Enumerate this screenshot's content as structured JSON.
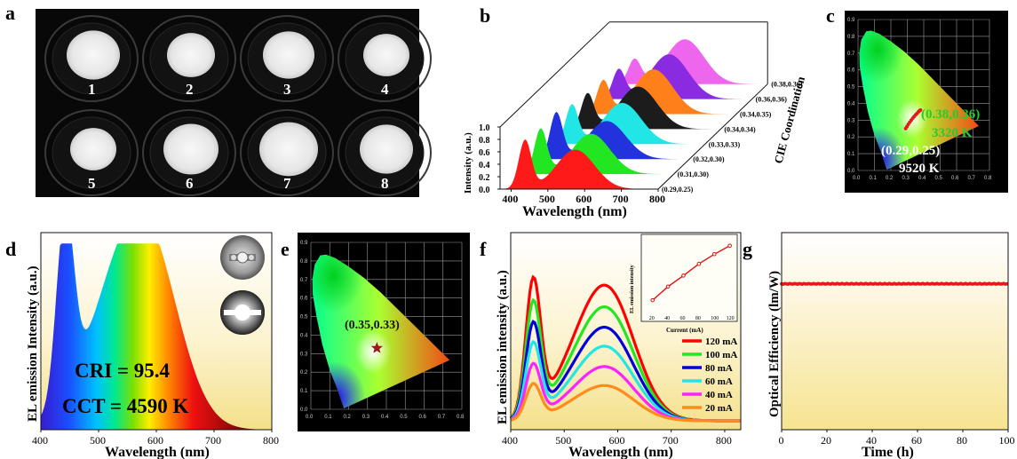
{
  "panel_labels": [
    "a",
    "b",
    "c",
    "d",
    "e",
    "f",
    "g"
  ],
  "panel_a": {
    "sample_numbers": [
      "1",
      "2",
      "3",
      "4",
      "5",
      "6",
      "7",
      "8"
    ]
  },
  "chart_data": [
    {
      "id": "b",
      "type": "line",
      "xlabel": "Wavelength (nm)",
      "ylabel": "Intensity (a.u.)",
      "zlabel": "CIE Coordination",
      "x_ticks": [
        "400",
        "500",
        "600",
        "700",
        "800"
      ],
      "y_ticks": [
        "0.0",
        "0.2",
        "0.4",
        "0.6",
        "0.8",
        "1.0"
      ],
      "xlim": [
        370,
        800
      ],
      "ylim": [
        0,
        1.0
      ],
      "series": [
        {
          "name": "(0.29,0.25)",
          "color": "#ff1a1a",
          "blue_peak": 1.0,
          "yellow_peak": 0.88
        },
        {
          "name": "(0.31,0.30)",
          "color": "#22e622",
          "blue_peak": 0.92,
          "yellow_peak": 0.9
        },
        {
          "name": "(0.32,0.30)",
          "color": "#2233dd",
          "blue_peak": 0.95,
          "yellow_peak": 0.85
        },
        {
          "name": "(0.33,0.33)",
          "color": "#22e6e6",
          "blue_peak": 0.8,
          "yellow_peak": 0.92
        },
        {
          "name": "(0.34,0.34)",
          "color": "#1c1c1c",
          "blue_peak": 0.72,
          "yellow_peak": 0.95
        },
        {
          "name": "(0.34,0.35)",
          "color": "#ff7f1a",
          "blue_peak": 0.68,
          "yellow_peak": 1.0
        },
        {
          "name": "(0.36,0.36)",
          "color": "#8a2be2",
          "blue_peak": 0.6,
          "yellow_peak": 1.0
        },
        {
          "name": "(0.38,0.36)",
          "color": "#ee66ee",
          "blue_peak": 0.5,
          "yellow_peak": 1.0
        }
      ]
    },
    {
      "id": "c",
      "type": "scatter",
      "x_ticks": [
        "0.0",
        "0.1",
        "0.2",
        "0.3",
        "0.4",
        "0.5",
        "0.6",
        "0.7",
        "0.8"
      ],
      "y_ticks": [
        "0.0",
        "0.1",
        "0.2",
        "0.3",
        "0.4",
        "0.5",
        "0.6",
        "0.7",
        "0.8",
        "0.9"
      ],
      "xlim": [
        0,
        0.8
      ],
      "ylim": [
        0,
        0.9
      ],
      "points": [
        [
          0.29,
          0.25
        ],
        [
          0.298,
          0.262
        ],
        [
          0.306,
          0.275
        ],
        [
          0.315,
          0.288
        ],
        [
          0.324,
          0.3
        ],
        [
          0.333,
          0.312
        ],
        [
          0.342,
          0.322
        ],
        [
          0.351,
          0.332
        ],
        [
          0.36,
          0.341
        ],
        [
          0.368,
          0.35
        ],
        [
          0.375,
          0.357
        ],
        [
          0.38,
          0.36
        ]
      ],
      "point_color": "#e41a1a",
      "annotations": [
        {
          "text": "(0.38,0.36)",
          "color": "#22cc33"
        },
        {
          "text": "3320 K",
          "color": "#22cc33"
        },
        {
          "text": "(0.29,0.25)",
          "color": "#ffffff"
        },
        {
          "text": "9520 K",
          "color": "#ffffff"
        }
      ]
    },
    {
      "id": "d",
      "type": "area",
      "xlabel": "Wavelength (nm)",
      "ylabel": "EL emission Intensity (a.u.)",
      "x_ticks": [
        "400",
        "500",
        "600",
        "700",
        "800"
      ],
      "xlim": [
        400,
        800
      ],
      "annotations": [
        "CRI = 95.4",
        "CCT = 4590 K"
      ]
    },
    {
      "id": "e",
      "type": "scatter",
      "x_ticks": [
        "0.0",
        "0.1",
        "0.2",
        "0.3",
        "0.4",
        "0.5",
        "0.6",
        "0.7",
        "0.8"
      ],
      "y_ticks": [
        "0.0",
        "0.1",
        "0.2",
        "0.3",
        "0.4",
        "0.5",
        "0.6",
        "0.7",
        "0.8",
        "0.9"
      ],
      "xlim": [
        0,
        0.8
      ],
      "ylim": [
        0,
        0.9
      ],
      "point": [
        0.35,
        0.33
      ],
      "point_color": "#9b1c1c",
      "label": "(0.35,0.33)"
    },
    {
      "id": "f",
      "type": "line",
      "xlabel": "Wavelength (nm)",
      "ylabel": "EL emission intensity (a.u.)",
      "x_ticks": [
        "400",
        "500",
        "600",
        "700",
        "800"
      ],
      "xlim": [
        400,
        830
      ],
      "series": [
        {
          "name": "120 mA",
          "color": "#ff0000",
          "scale": 1.0
        },
        {
          "name": "100 mA",
          "color": "#22e622",
          "scale": 0.84
        },
        {
          "name": "80 mA",
          "color": "#0000dd",
          "scale": 0.69
        },
        {
          "name": "60 mA",
          "color": "#22e6e6",
          "scale": 0.55
        },
        {
          "name": "40 mA",
          "color": "#ff22ff",
          "scale": 0.4
        },
        {
          "name": "20 mA",
          "color": "#ff8c1a",
          "scale": 0.26
        }
      ],
      "inset": {
        "type": "line",
        "xlabel": "Current (mA)",
        "ylabel": "EL emission intensity",
        "x_ticks": [
          "20",
          "40",
          "60",
          "80",
          "100",
          "120"
        ],
        "xlim": [
          10,
          125
        ],
        "ylim": [
          0,
          1.15
        ],
        "x": [
          20,
          40,
          60,
          80,
          100,
          120
        ],
        "values": [
          0.19,
          0.4,
          0.57,
          0.75,
          0.9,
          1.03
        ],
        "color": "#dd1111"
      }
    },
    {
      "id": "g",
      "type": "scatter",
      "xlabel": "Time (h)",
      "ylabel": "Optical Efficiency (lm/W)",
      "x_ticks": [
        "0",
        "20",
        "40",
        "60",
        "80",
        "100"
      ],
      "xlim": [
        0,
        100
      ],
      "ylim": [
        0,
        1
      ],
      "level": 0.74,
      "color": "#e41a1a"
    }
  ]
}
